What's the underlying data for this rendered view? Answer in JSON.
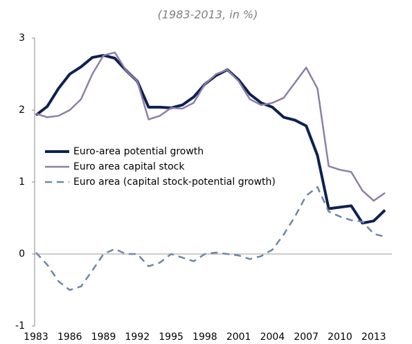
{
  "chart_data": {
    "type": "line",
    "subtitle": "(1983-2013, in %)",
    "x": [
      1983,
      1984,
      1985,
      1986,
      1987,
      1988,
      1989,
      1990,
      1991,
      1992,
      1993,
      1994,
      1995,
      1996,
      1997,
      1998,
      1999,
      2000,
      2001,
      2002,
      2003,
      2004,
      2005,
      2006,
      2007,
      2008,
      2009,
      2010,
      2011,
      2012,
      2013,
      2014
    ],
    "series": [
      {
        "name": "Euro-area potential growth",
        "color": "#0d2151",
        "style": "solid",
        "width": 4,
        "values": [
          1.93,
          2.05,
          2.3,
          2.5,
          2.6,
          2.73,
          2.76,
          2.72,
          2.55,
          2.4,
          2.04,
          2.04,
          2.03,
          2.07,
          2.18,
          2.36,
          2.48,
          2.56,
          2.42,
          2.22,
          2.1,
          2.04,
          1.9,
          1.86,
          1.78,
          1.37,
          0.63,
          0.65,
          0.67,
          0.43,
          0.46,
          0.61
        ]
      },
      {
        "name": "Euro area capital stock",
        "color": "#8c7fa6",
        "style": "solid",
        "width": 2.5,
        "values": [
          1.95,
          1.9,
          1.92,
          2.0,
          2.15,
          2.5,
          2.76,
          2.8,
          2.55,
          2.4,
          1.87,
          1.92,
          2.03,
          2.02,
          2.1,
          2.36,
          2.5,
          2.56,
          2.4,
          2.15,
          2.07,
          2.1,
          2.17,
          2.38,
          2.59,
          2.3,
          1.22,
          1.17,
          1.14,
          0.88,
          0.74,
          0.85
        ]
      },
      {
        "name": "Euro area (capital stock-potential growth)",
        "color": "#6d86a8",
        "style": "dashed",
        "width": 2.5,
        "values": [
          0.02,
          -0.15,
          -0.38,
          -0.5,
          -0.45,
          -0.23,
          0.0,
          0.07,
          0.0,
          0.0,
          -0.17,
          -0.12,
          0.0,
          -0.05,
          -0.1,
          0.0,
          0.02,
          0.0,
          -0.02,
          -0.07,
          -0.03,
          0.06,
          0.27,
          0.52,
          0.81,
          0.93,
          0.59,
          0.52,
          0.47,
          0.45,
          0.28,
          0.24
        ]
      }
    ],
    "xlim": [
      1983,
      2014
    ],
    "xticks": [
      1983,
      1986,
      1989,
      1992,
      1995,
      1998,
      2001,
      2004,
      2007,
      2010,
      2013
    ],
    "ylim": [
      -1,
      3
    ],
    "yticks": [
      -1,
      0,
      1,
      2,
      3
    ],
    "legend": "left"
  }
}
